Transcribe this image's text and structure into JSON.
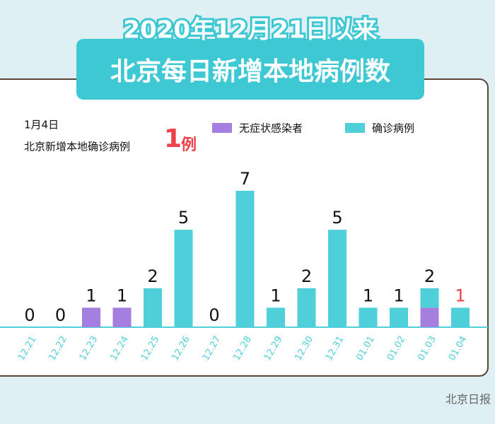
{
  "chart_data": {
    "type": "stacked_bar",
    "title": "2020年12月21日以来",
    "subtitle": "北京每日新增本地病例数",
    "note": {
      "date": "1月4日",
      "text": "北京新增本地确诊病例",
      "count": 1,
      "unit": "例"
    },
    "categories": [
      "12.21",
      "12.22",
      "12.23",
      "12.24",
      "12.25",
      "12.26",
      "12.27",
      "12.28",
      "12.29",
      "12.30",
      "12.31",
      "01.01",
      "01.02",
      "01.03",
      "01.04"
    ],
    "series": [
      {
        "name": "无症状感染者",
        "color": "#a57fe0",
        "values": [
          0,
          0,
          1,
          1,
          0,
          0,
          0,
          0,
          0,
          0,
          0,
          0,
          0,
          1,
          0
        ]
      },
      {
        "name": "确诊病例",
        "color": "#4ecfd9",
        "values": [
          0,
          0,
          0,
          0,
          2,
          5,
          0,
          7,
          1,
          2,
          5,
          1,
          1,
          1,
          1
        ]
      }
    ],
    "totals": [
      0,
      0,
      1,
      1,
      2,
      5,
      0,
      7,
      1,
      2,
      5,
      1,
      1,
      2,
      1
    ],
    "label_colors": [
      "#111",
      "#111",
      "#111",
      "#111",
      "#111",
      "#111",
      "#111",
      "#111",
      "#111",
      "#111",
      "#111",
      "#111",
      "#111",
      "#111",
      "#f0404a"
    ],
    "source": "北京日报"
  }
}
